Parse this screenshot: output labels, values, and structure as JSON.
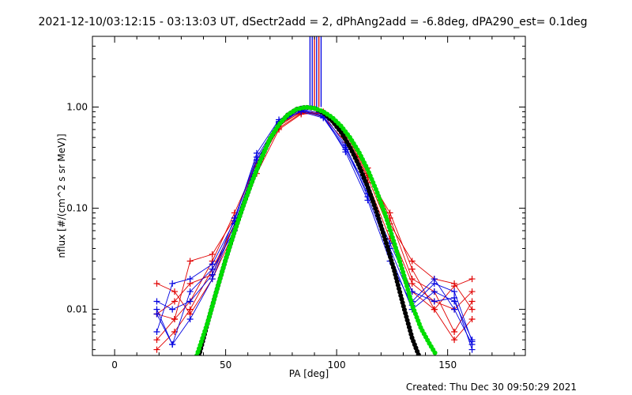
{
  "chart_data": {
    "type": "line",
    "title": "2021-12-10/03:12:15 - 03:13:03 UT, dSectr2add = 2, dPhAng2add = -6.8deg, dPA290_est=  0.1deg",
    "xlabel": "PA [deg]",
    "ylabel": "nflux [#/(cm^2 s sr MeV)]",
    "xlim": [
      -10,
      185
    ],
    "ylim": [
      0.0035,
      5
    ],
    "yscale": "log",
    "x_ticks": [
      0,
      50,
      100,
      150
    ],
    "x_tick_labels": [
      "0",
      "50",
      "100",
      "150"
    ],
    "y_ticks": [
      0.01,
      0.1,
      1.0
    ],
    "y_tick_labels": [
      "0.01",
      "0.10",
      "1.00"
    ],
    "grid": false,
    "footer": "Created: Thu Dec 30 09:50:29 2021",
    "colors": {
      "red_series": "#e00000",
      "blue_series": "#0000e0",
      "black_fit": "#000000",
      "green_fit": "#00dd00"
    },
    "series": [
      {
        "color": "red",
        "marker": "plus",
        "x": [
          19,
          27,
          34,
          44,
          54,
          64,
          74,
          84,
          94,
          104,
          114,
          124,
          134,
          144,
          153,
          161
        ],
        "y": [
          0.009,
          0.012,
          0.018,
          0.022,
          0.07,
          0.25,
          0.65,
          0.9,
          0.85,
          0.5,
          0.2,
          0.06,
          0.018,
          0.012,
          0.01,
          0.015
        ]
      },
      {
        "color": "red",
        "marker": "plus",
        "x": [
          19,
          27,
          34,
          44,
          54,
          64,
          74,
          84,
          94,
          104,
          114,
          124,
          134,
          144,
          153,
          161
        ],
        "y": [
          0.005,
          0.008,
          0.03,
          0.035,
          0.08,
          0.3,
          0.7,
          0.92,
          0.8,
          0.45,
          0.25,
          0.08,
          0.02,
          0.015,
          0.006,
          0.012
        ]
      },
      {
        "color": "red",
        "marker": "plus",
        "x": [
          19,
          27,
          34,
          44,
          54,
          64,
          74,
          84,
          94,
          104,
          114,
          124,
          134,
          144,
          153,
          161
        ],
        "y": [
          0.018,
          0.015,
          0.009,
          0.02,
          0.06,
          0.22,
          0.6,
          0.85,
          0.88,
          0.55,
          0.22,
          0.07,
          0.03,
          0.02,
          0.018,
          0.01
        ]
      },
      {
        "color": "red",
        "marker": "plus",
        "x": [
          19,
          27,
          34,
          44,
          54,
          64,
          74,
          84,
          94,
          104,
          114,
          124,
          134,
          144,
          153,
          161
        ],
        "y": [
          0.009,
          0.008,
          0.012,
          0.03,
          0.09,
          0.28,
          0.68,
          0.88,
          0.9,
          0.5,
          0.18,
          0.05,
          0.015,
          0.01,
          0.005,
          0.008
        ]
      },
      {
        "color": "red",
        "marker": "plus",
        "x": [
          19,
          27,
          34,
          44,
          54,
          64,
          74,
          84,
          94,
          104,
          114,
          124,
          134,
          144,
          153,
          161
        ],
        "y": [
          0.004,
          0.006,
          0.01,
          0.025,
          0.07,
          0.26,
          0.62,
          0.87,
          0.86,
          0.52,
          0.21,
          0.09,
          0.025,
          0.01,
          0.017,
          0.02
        ]
      },
      {
        "color": "blue",
        "marker": "plus",
        "x": [
          19,
          26,
          34,
          44,
          54,
          64,
          74,
          84,
          94,
          104,
          114,
          124,
          134,
          144,
          153,
          161
        ],
        "y": [
          0.009,
          0.0045,
          0.015,
          0.025,
          0.06,
          0.3,
          0.7,
          0.95,
          0.8,
          0.4,
          0.15,
          0.04,
          0.012,
          0.02,
          0.01,
          0.0045
        ]
      },
      {
        "color": "blue",
        "marker": "plus",
        "x": [
          19,
          26,
          34,
          44,
          54,
          64,
          74,
          84,
          94,
          104,
          114,
          124,
          134,
          144,
          153,
          161
        ],
        "y": [
          0.006,
          0.018,
          0.02,
          0.028,
          0.075,
          0.35,
          0.75,
          0.96,
          0.85,
          0.42,
          0.13,
          0.035,
          0.01,
          0.015,
          0.012,
          0.005
        ]
      },
      {
        "color": "blue",
        "marker": "plus",
        "x": [
          19,
          26,
          34,
          44,
          54,
          64,
          74,
          84,
          94,
          104,
          114,
          124,
          134,
          144,
          153,
          161
        ],
        "y": [
          0.012,
          0.01,
          0.012,
          0.022,
          0.08,
          0.32,
          0.72,
          0.9,
          0.78,
          0.38,
          0.14,
          0.045,
          0.015,
          0.012,
          0.013,
          0.004
        ]
      },
      {
        "color": "blue",
        "marker": "plus",
        "x": [
          19,
          26,
          34,
          44,
          54,
          64,
          74,
          84,
          94,
          104,
          114,
          124,
          134,
          144,
          153,
          161
        ],
        "y": [
          0.01,
          0.0045,
          0.008,
          0.02,
          0.07,
          0.3,
          0.68,
          0.92,
          0.82,
          0.36,
          0.12,
          0.03,
          0.011,
          0.018,
          0.015,
          0.0048
        ]
      }
    ],
    "fits": [
      {
        "name": "black-fit",
        "color": "black",
        "x": [
          38,
          42,
          46,
          50,
          54,
          58,
          62,
          66,
          70,
          74,
          78,
          82,
          86,
          90,
          94,
          98,
          102,
          106,
          110,
          114,
          118,
          122,
          126,
          130,
          134,
          137
        ],
        "y": [
          0.0035,
          0.0075,
          0.0155,
          0.031,
          0.059,
          0.107,
          0.186,
          0.308,
          0.486,
          0.672,
          0.839,
          0.953,
          0.997,
          0.972,
          0.877,
          0.731,
          0.565,
          0.402,
          0.266,
          0.163,
          0.092,
          0.048,
          0.024,
          0.011,
          0.0052,
          0.0035
        ]
      },
      {
        "name": "green-fit",
        "color": "green",
        "x": [
          37,
          42,
          46,
          50,
          54,
          58,
          62,
          66,
          70,
          74,
          78,
          82,
          86,
          90,
          94,
          98,
          102,
          106,
          110,
          114,
          118,
          122,
          126,
          130,
          134,
          138,
          142,
          145
        ],
        "y": [
          0.0035,
          0.0075,
          0.0155,
          0.031,
          0.059,
          0.107,
          0.186,
          0.308,
          0.486,
          0.672,
          0.839,
          0.953,
          0.997,
          0.975,
          0.9,
          0.79,
          0.65,
          0.5,
          0.36,
          0.24,
          0.148,
          0.085,
          0.045,
          0.023,
          0.011,
          0.0065,
          0.0045,
          0.0035
        ]
      }
    ],
    "vertical_markers": [
      {
        "x": 88,
        "color": "blue"
      },
      {
        "x": 89,
        "color": "blue"
      },
      {
        "x": 90,
        "color": "red"
      },
      {
        "x": 91,
        "color": "blue"
      },
      {
        "x": 92,
        "color": "red"
      },
      {
        "x": 93,
        "color": "blue"
      }
    ]
  }
}
